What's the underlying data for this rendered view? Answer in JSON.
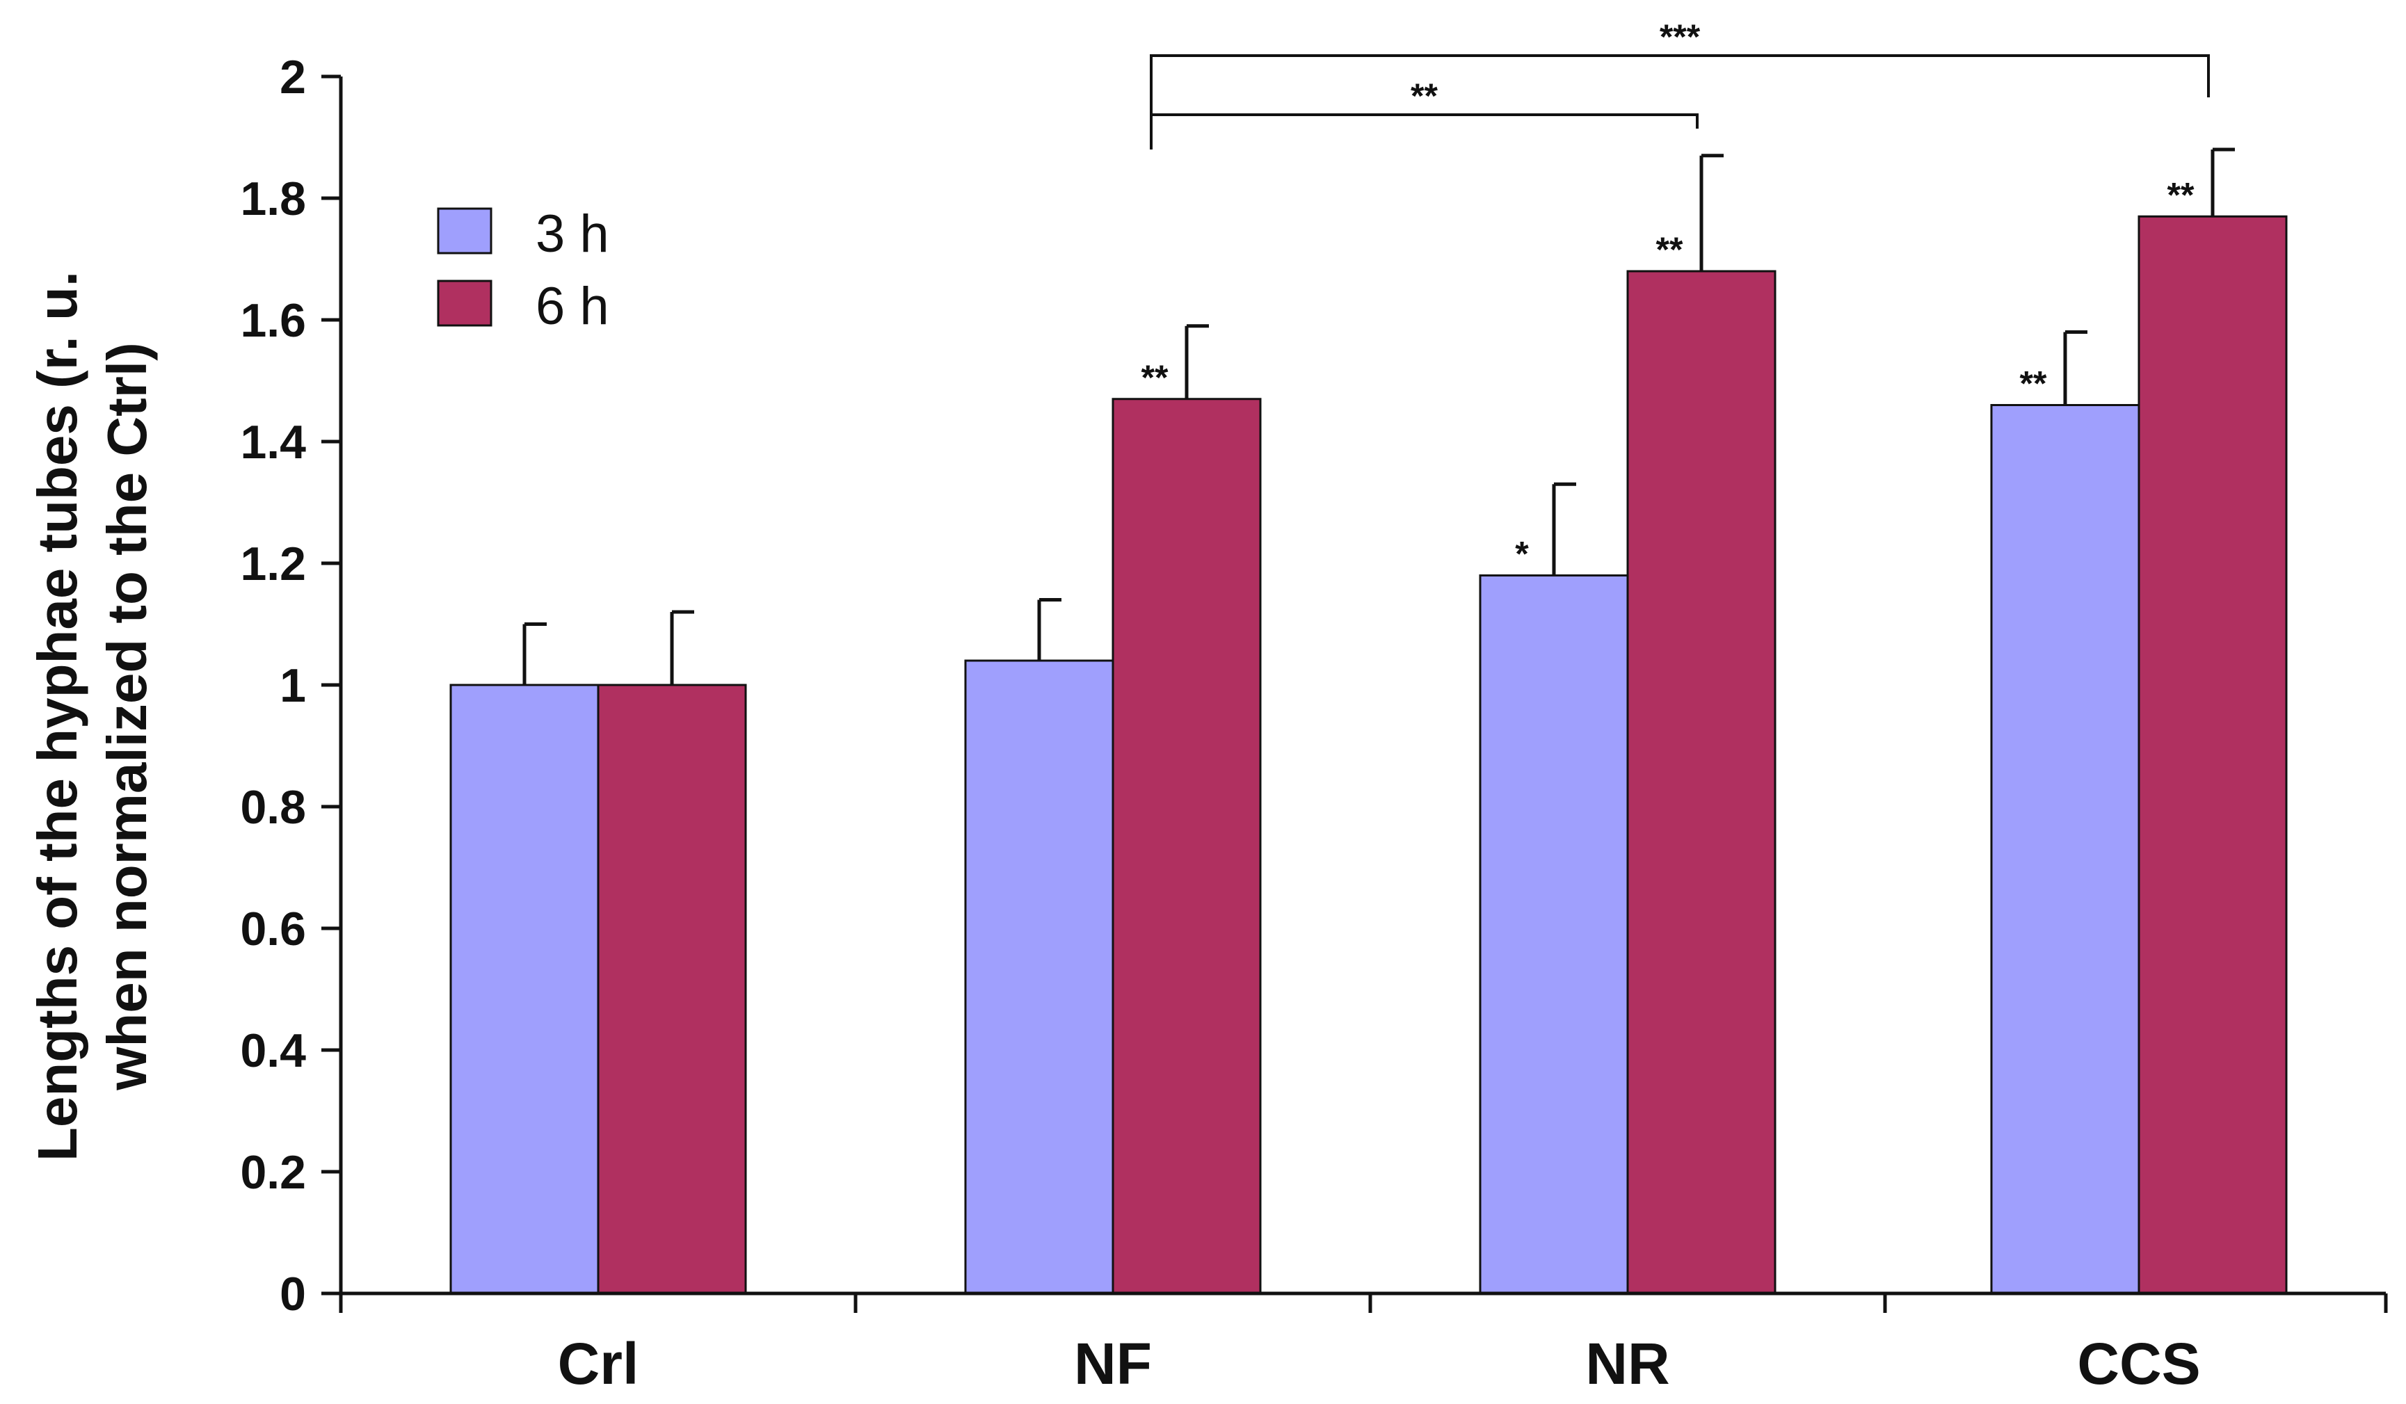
{
  "chart_data": {
    "type": "bar",
    "categories": [
      "Crl",
      "NF",
      "NR",
      "CCS"
    ],
    "series": [
      {
        "name": "3 h",
        "color": "#9f9ffd",
        "values": [
          1.0,
          1.04,
          1.18,
          1.46
        ],
        "errors": [
          0.1,
          0.1,
          0.15,
          0.12
        ],
        "significance": [
          "",
          "",
          "*",
          "**"
        ]
      },
      {
        "name": "6 h",
        "color": "#b03060",
        "values": [
          1.0,
          1.47,
          1.68,
          1.77
        ],
        "errors": [
          0.12,
          0.12,
          0.19,
          0.11
        ],
        "significance": [
          "",
          "**",
          "**",
          "**"
        ]
      }
    ],
    "ylabel_lines": [
      "Lengths of the hyphae tubes (r. u.",
      "when normalized to the Ctrl)"
    ],
    "ylim": [
      0,
      2
    ],
    "yticks": [
      0,
      0.2,
      0.4,
      0.6,
      0.8,
      1,
      1.2,
      1.4,
      1.6,
      1.8,
      2
    ],
    "ytick_labels": [
      "0",
      "0.2",
      "0.4",
      "0.6",
      "0.8",
      "1",
      "1.2",
      "1.4",
      "1.6",
      "1.8",
      "2"
    ],
    "legend": {
      "position": "top-left",
      "entries": [
        "3 h",
        "6 h"
      ]
    },
    "comparisons": [
      {
        "from": "NF",
        "to": "NR",
        "label": "**"
      },
      {
        "from": "NF",
        "to": "CCS",
        "label": "***"
      }
    ]
  }
}
